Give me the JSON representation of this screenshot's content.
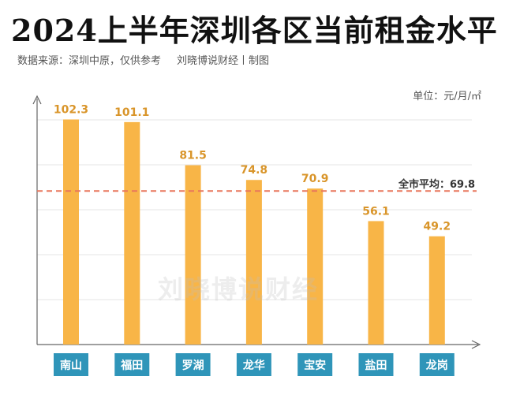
{
  "header": {
    "title": "2024上半年深圳各区当前租金水平",
    "source": "数据来源：深圳中原，仅供参考",
    "credit": "刘晓博说财经丨制图"
  },
  "watermark": "刘晓博说财经",
  "colors": {
    "bar": "#f8b547",
    "bar_label": "#d9952a",
    "category_box": "#2f95b9",
    "average_line": "#e8765c",
    "axis": "#666666",
    "grid": "#e6e6e6"
  },
  "chart_data": {
    "type": "bar",
    "title": "2024上半年深圳各区当前租金水平",
    "unit_label": "单位：元/月/㎡",
    "categories": [
      "南山",
      "福田",
      "罗湖",
      "龙华",
      "宝安",
      "盐田",
      "龙岗"
    ],
    "values": [
      102.3,
      101.1,
      81.5,
      74.8,
      70.9,
      56.1,
      49.2
    ],
    "value_labels": [
      "102.3",
      "101.1",
      "81.5",
      "74.8",
      "70.9",
      "56.1",
      "49.2"
    ],
    "average": {
      "label": "全市平均：69.8",
      "value": 69.8
    },
    "ylim": [
      0,
      110
    ],
    "grid": true,
    "y_tick_labels": false
  }
}
